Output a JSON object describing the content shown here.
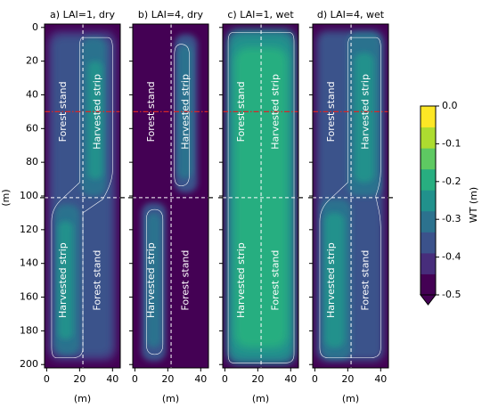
{
  "chart_data": {
    "type": "heatmap",
    "ylabel": "(m)",
    "xlabel": "(m)",
    "xlim": [
      0,
      45
    ],
    "ylim": [
      202,
      -2
    ],
    "xticks": [
      0,
      20,
      40
    ],
    "yticks": [
      0,
      20,
      40,
      60,
      80,
      100,
      120,
      140,
      160,
      180,
      200
    ],
    "reference_lines": {
      "vertical_x": 22,
      "horizontal_y": 101,
      "red_line_y": 50
    },
    "colorbar": {
      "label": "WT (m)",
      "min": -0.5,
      "max": 0.0,
      "ticks": [
        0.0,
        -0.1,
        -0.2,
        -0.3,
        -0.4,
        -0.5
      ],
      "extend": "min",
      "colors": [
        "#440154",
        "#472d7b",
        "#3b528b",
        "#2c728e",
        "#21918c",
        "#28ae80",
        "#5ec962",
        "#addc30",
        "#fde725"
      ]
    },
    "panels": [
      {
        "title": "a) LAI=1, dry",
        "labels": [
          {
            "text": "Forest stand",
            "x": 10,
            "y": 50
          },
          {
            "text": "Harvested strip",
            "x": 31,
            "y": 50
          },
          {
            "text": "Harvested strip",
            "x": 10,
            "y": 150
          },
          {
            "text": "Forest stand",
            "x": 31,
            "y": 150
          }
        ]
      },
      {
        "title": "b) LAI=4, dry",
        "labels": [
          {
            "text": "Forest stand",
            "x": 10,
            "y": 50
          },
          {
            "text": "Harvested strip",
            "x": 31,
            "y": 50
          },
          {
            "text": "Harvested strip",
            "x": 10,
            "y": 150
          },
          {
            "text": "Forest stand",
            "x": 31,
            "y": 150
          }
        ]
      },
      {
        "title": "c) LAI=1, wet",
        "labels": [
          {
            "text": "Forest stand",
            "x": 10,
            "y": 50
          },
          {
            "text": "Harvested strip",
            "x": 31,
            "y": 50
          },
          {
            "text": "Harvested strip",
            "x": 10,
            "y": 150
          },
          {
            "text": "Forest stand",
            "x": 31,
            "y": 150
          }
        ]
      },
      {
        "title": "d) LAI=4, wet",
        "labels": [
          {
            "text": "Forest stand",
            "x": 10,
            "y": 50
          },
          {
            "text": "Harvested strip",
            "x": 31,
            "y": 50
          },
          {
            "text": "Harvested strip",
            "x": 10,
            "y": 150
          },
          {
            "text": "Forest stand",
            "x": 31,
            "y": 150
          }
        ]
      }
    ]
  }
}
